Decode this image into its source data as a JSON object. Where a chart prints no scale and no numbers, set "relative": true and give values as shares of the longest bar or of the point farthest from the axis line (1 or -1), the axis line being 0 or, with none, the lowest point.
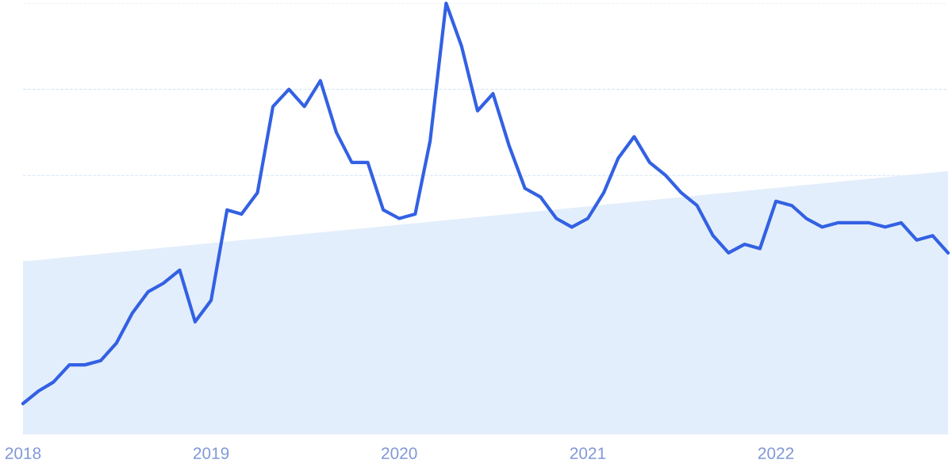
{
  "chart_data": {
    "type": "line",
    "relative": true,
    "grid": "y",
    "legend": false,
    "tick_labels": "x",
    "marker": "none",
    "line_style": "solid",
    "xlim": [
      "2018-01",
      "2022-12"
    ],
    "xticks": [
      "2018",
      "2019",
      "2020",
      "2021",
      "2022"
    ],
    "series": [
      {
        "type": "area",
        "color": "#e3eefc",
        "x": [
          "2018-01",
          "2022-12"
        ],
        "values": [
          0.4,
          0.61
        ]
      },
      {
        "color": "#3361e3",
        "x": [
          "2018-01",
          "2018-02",
          "2018-03",
          "2018-04",
          "2018-05",
          "2018-06",
          "2018-07",
          "2018-08",
          "2018-09",
          "2018-10",
          "2018-11",
          "2018-12",
          "2019-01",
          "2019-02",
          "2019-03",
          "2019-04",
          "2019-05",
          "2019-06",
          "2019-07",
          "2019-08",
          "2019-09",
          "2019-10",
          "2019-11",
          "2019-12",
          "2020-01",
          "2020-02",
          "2020-03",
          "2020-04",
          "2020-05",
          "2020-06",
          "2020-07",
          "2020-08",
          "2020-09",
          "2020-10",
          "2020-11",
          "2020-12",
          "2021-01",
          "2021-02",
          "2021-03",
          "2021-04",
          "2021-05",
          "2021-06",
          "2021-07",
          "2021-08",
          "2021-09",
          "2021-10",
          "2021-11",
          "2021-12",
          "2022-01",
          "2022-02",
          "2022-03",
          "2022-04",
          "2022-05",
          "2022-06",
          "2022-07",
          "2022-08",
          "2022-09",
          "2022-10",
          "2022-11",
          "2022-12"
        ],
        "values": [
          0.07,
          0.1,
          0.12,
          0.16,
          0.16,
          0.17,
          0.21,
          0.28,
          0.33,
          0.35,
          0.38,
          0.26,
          0.31,
          0.52,
          0.51,
          0.56,
          0.76,
          0.8,
          0.76,
          0.82,
          0.7,
          0.63,
          0.63,
          0.52,
          0.5,
          0.51,
          0.68,
          1,
          0.9,
          0.75,
          0.79,
          0.67,
          0.57,
          0.55,
          0.5,
          0.48,
          0.5,
          0.56,
          0.64,
          0.69,
          0.63,
          0.6,
          0.56,
          0.53,
          0.46,
          0.42,
          0.44,
          0.43,
          0.54,
          0.53,
          0.5,
          0.48,
          0.49,
          0.49,
          0.49,
          0.48,
          0.49,
          0.45,
          0.46,
          0.42
        ]
      }
    ]
  }
}
